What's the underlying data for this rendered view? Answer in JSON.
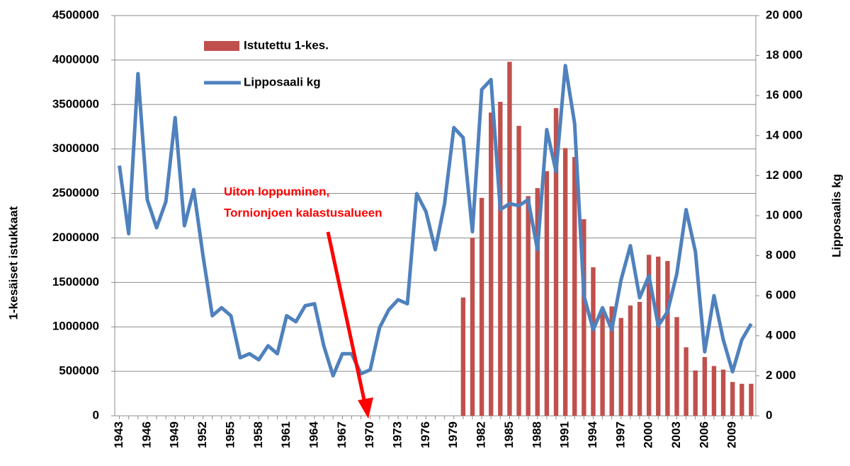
{
  "chart_data": {
    "type": "bar-line",
    "categories": [
      "1943",
      null,
      null,
      "1946",
      null,
      null,
      "1949",
      null,
      null,
      "1952",
      null,
      null,
      "1955",
      null,
      null,
      "1958",
      null,
      null,
      "1961",
      null,
      null,
      "1964",
      null,
      null,
      "1967",
      null,
      null,
      "1970",
      null,
      null,
      "1973",
      null,
      null,
      "1976",
      null,
      null,
      "1979",
      null,
      null,
      "1982",
      null,
      null,
      "1985",
      null,
      null,
      "1988",
      null,
      null,
      "1991",
      null,
      null,
      "1994",
      null,
      null,
      "1997",
      null,
      null,
      "2000",
      null,
      null,
      "2003",
      null,
      null,
      "2006",
      null,
      null,
      "2009",
      null,
      null
    ],
    "series": [
      {
        "name": "Istutettu 1-kes.",
        "type": "bar",
        "color": "#c0504d",
        "values": [
          null,
          null,
          null,
          null,
          null,
          null,
          null,
          null,
          null,
          null,
          null,
          null,
          null,
          null,
          null,
          null,
          null,
          null,
          null,
          null,
          null,
          null,
          null,
          null,
          null,
          null,
          null,
          null,
          null,
          null,
          null,
          null,
          null,
          null,
          null,
          null,
          null,
          1330000,
          2000000,
          2450000,
          3410000,
          3530000,
          3980000,
          3260000,
          2470000,
          2560000,
          2750000,
          3460000,
          3010000,
          2910000,
          2210000,
          1670000,
          1180000,
          1230000,
          1100000,
          1240000,
          1280000,
          1810000,
          1790000,
          1740000,
          1110000,
          770000,
          510000,
          660000,
          560000,
          520000,
          380000,
          360000,
          360000
        ]
      },
      {
        "name": "Lipposaali kg",
        "type": "line",
        "axis": "y2",
        "color": "#4f81bd",
        "values": [
          12500,
          9100,
          17100,
          10800,
          9400,
          10700,
          14900,
          9500,
          11300,
          8000,
          5000,
          5400,
          5000,
          2900,
          3100,
          2800,
          3500,
          3100,
          5000,
          4700,
          5500,
          5600,
          3500,
          2000,
          3100,
          3100,
          2100,
          2300,
          4400,
          5300,
          5800,
          5600,
          11100,
          10200,
          8300,
          10600,
          14400,
          13900,
          9200,
          16300,
          16800,
          10300,
          10600,
          10500,
          10800,
          8300,
          14300,
          12200,
          17500,
          14600,
          6000,
          4300,
          5400,
          4300,
          6800,
          8500,
          5900,
          7000,
          4500,
          5200,
          7100,
          10300,
          8200,
          3200,
          6000,
          3800,
          2200,
          3800,
          4600
        ]
      }
    ],
    "ylabel": "1-kesäiset istukkaat",
    "y2label": "Lipposaalis kg",
    "ylim": [
      0,
      4500000
    ],
    "yticks": [
      0,
      500000,
      1000000,
      1500000,
      2000000,
      2500000,
      3000000,
      3500000,
      4000000,
      4500000
    ],
    "y2lim": [
      0,
      20000
    ],
    "y2ticks": [
      0,
      {
        "value": 2000,
        "label": "2 000"
      },
      {
        "value": 4000,
        "label": "4 000"
      },
      {
        "value": 6000,
        "label": "6 000"
      },
      {
        "value": 8000,
        "label": "8 000"
      },
      {
        "value": 10000,
        "label": "10 000"
      },
      {
        "value": 12000,
        "label": "12 000"
      },
      {
        "value": 14000,
        "label": "14 000"
      },
      {
        "value": 16000,
        "label": "16 000"
      },
      {
        "value": 18000,
        "label": "18 000"
      },
      {
        "value": 20000,
        "label": "20 000"
      }
    ],
    "annotations": [
      "Uiton loppuminen,",
      "Tornionjoen kalastusalueen"
    ],
    "grid": true
  }
}
